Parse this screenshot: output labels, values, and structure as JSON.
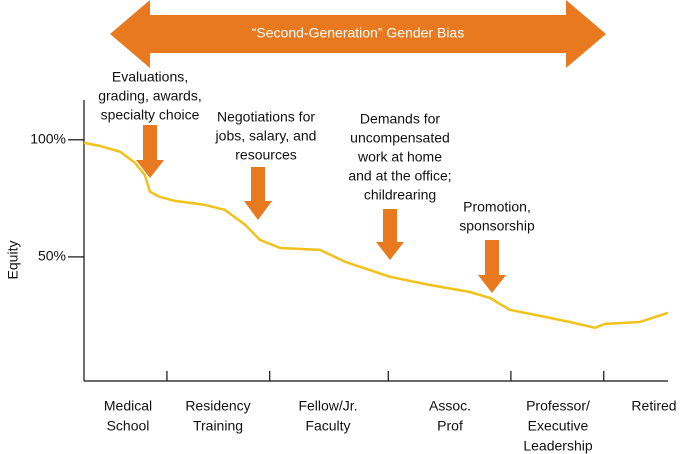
{
  "chart_data": {
    "type": "line",
    "banner": "“Second-Generation” Gender Bias",
    "y_label": "Equity",
    "xlim": [
      0,
      100
    ],
    "xticks": [
      14.2,
      31.8,
      52.1,
      73.1,
      89.0
    ],
    "ylim": [
      -3,
      117
    ],
    "yticks": [
      {
        "value": 100,
        "label": "100%"
      },
      {
        "value": 50,
        "label": "50%"
      }
    ],
    "categories": [
      [
        "Medical",
        "School"
      ],
      [
        "Residency",
        "Training"
      ],
      [
        "Fellow/Jr.",
        "Faculty"
      ],
      [
        "Assoc.",
        "Prof"
      ],
      [
        "Professor/",
        "Executive",
        "Leadership"
      ],
      [
        "Retired"
      ]
    ],
    "annotations": [
      [
        "Evaluations,",
        "grading, awards,",
        "specialty choice"
      ],
      [
        "Negotiations for",
        "jobs, salary, and",
        "resources"
      ],
      [
        "Demands for",
        "uncompensated",
        "work at home",
        "and at the office;",
        "childrearing"
      ],
      [
        "Promotion,",
        "sponsorship"
      ]
    ],
    "x": [
      0,
      2.7,
      6.2,
      8.7,
      10.4,
      11.3,
      13.0,
      15.6,
      20.7,
      24.1,
      27.6,
      30.1,
      33.6,
      40.4,
      44.7,
      52.4,
      59.2,
      66.1,
      69.5,
      72.9,
      78.1,
      83.2,
      87.5,
      89.2,
      95.2,
      100
    ],
    "values": [
      98.7,
      97.4,
      94.9,
      90.2,
      85,
      77.8,
      75.6,
      73.9,
      72.2,
      70.1,
      63.7,
      57.3,
      53.8,
      53,
      47.9,
      41.5,
      38,
      35,
      32.5,
      27.4,
      24.8,
      22.2,
      19.7,
      21.4,
      22.2,
      26.1
    ],
    "color": "#f2c21b"
  }
}
